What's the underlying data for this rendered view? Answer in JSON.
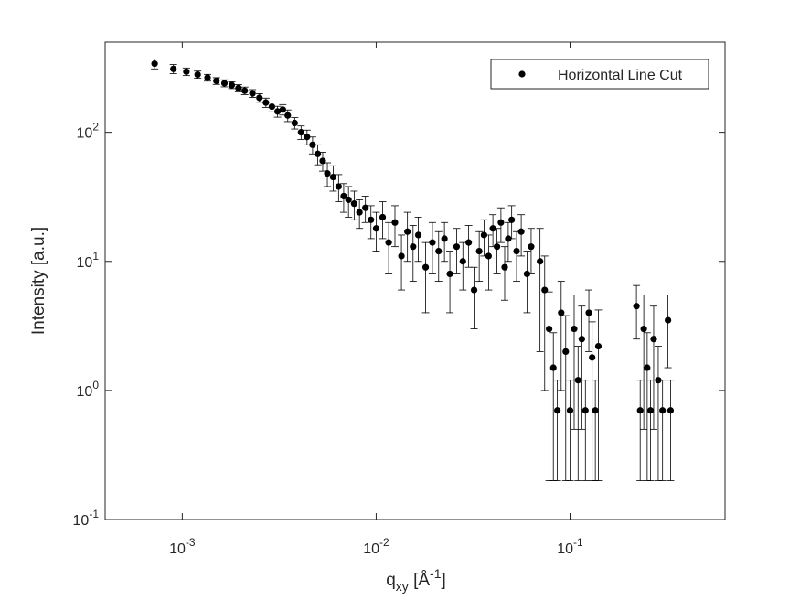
{
  "chart_data": {
    "type": "scatter",
    "xlabel_parts": [
      "q",
      "xy",
      " [Å",
      "-1",
      "]"
    ],
    "ylabel": "Intensity [a.u.]",
    "xscale": "log",
    "yscale": "log",
    "xlim": [
      0.0004,
      0.63
    ],
    "ylim": [
      0.1,
      500
    ],
    "xticks": [
      {
        "value": 0.001,
        "label": "10",
        "exponent": "-3"
      },
      {
        "value": 0.01,
        "label": "10",
        "exponent": "-2"
      },
      {
        "value": 0.1,
        "label": "10",
        "exponent": "-1"
      }
    ],
    "yticks": [
      {
        "value": 0.1,
        "label": "10",
        "exponent": "-1"
      },
      {
        "value": 1,
        "label": "10",
        "exponent": "0"
      },
      {
        "value": 10,
        "label": "10",
        "exponent": "1"
      },
      {
        "value": 100,
        "label": "10",
        "exponent": "2"
      }
    ],
    "legend": "northeast",
    "series": [
      {
        "name": "Horizontal Line Cut",
        "color": "#000000",
        "x": [
          0.00072,
          0.0009,
          0.00105,
          0.0012,
          0.00135,
          0.0015,
          0.00165,
          0.0018,
          0.00195,
          0.0021,
          0.0023,
          0.0025,
          0.0027,
          0.0029,
          0.0031,
          0.0033,
          0.0035,
          0.0038,
          0.0041,
          0.0044,
          0.0047,
          0.005,
          0.0053,
          0.0056,
          0.006,
          0.0064,
          0.0068,
          0.0072,
          0.0077,
          0.0082,
          0.0088,
          0.0094,
          0.01,
          0.0108,
          0.0116,
          0.0125,
          0.0135,
          0.0145,
          0.0155,
          0.0165,
          0.018,
          0.0195,
          0.021,
          0.0225,
          0.024,
          0.026,
          0.028,
          0.03,
          0.032,
          0.034,
          0.036,
          0.038,
          0.04,
          0.042,
          0.044,
          0.046,
          0.048,
          0.05,
          0.053,
          0.056,
          0.06,
          0.063,
          0.07,
          0.074,
          0.078,
          0.082,
          0.086,
          0.09,
          0.095,
          0.1,
          0.105,
          0.11,
          0.115,
          0.12,
          0.125,
          0.13,
          0.135,
          0.14,
          0.22,
          0.23,
          0.24,
          0.25,
          0.26,
          0.27,
          0.285,
          0.3,
          0.32,
          0.33
        ],
        "values": [
          340,
          310,
          295,
          280,
          265,
          250,
          240,
          232,
          220,
          210,
          200,
          185,
          170,
          158,
          145,
          150,
          135,
          118,
          100,
          92,
          80,
          68,
          60,
          48,
          45,
          38,
          32,
          30,
          28,
          24,
          26,
          21,
          18,
          22,
          14,
          20,
          11,
          17,
          13,
          16,
          9,
          14,
          12,
          15,
          8,
          13,
          10,
          14,
          6,
          12,
          16,
          11,
          18,
          13,
          20,
          9,
          15,
          21,
          12,
          17,
          8,
          13,
          10,
          6,
          3,
          1.5,
          0.7,
          4,
          2,
          0.7,
          3,
          1.2,
          2.5,
          0.7,
          4,
          1.8,
          0.7,
          2.2,
          4.5,
          0.7,
          3,
          1.5,
          0.7,
          2.5,
          1.2,
          0.7,
          3.5,
          0.7
        ],
        "errors": [
          30,
          25,
          20,
          18,
          16,
          15,
          15,
          14,
          14,
          14,
          14,
          14,
          14,
          14,
          14,
          14,
          14,
          12,
          12,
          12,
          12,
          12,
          10,
          10,
          10,
          9,
          8,
          8,
          7,
          6,
          6,
          6,
          6,
          7,
          6,
          7,
          5,
          7,
          6,
          6,
          5,
          6,
          5,
          5,
          4,
          5,
          4,
          5,
          3,
          5,
          5,
          5,
          5,
          5,
          6,
          4,
          5,
          6,
          5,
          6,
          4,
          5,
          8,
          5,
          2.8,
          1.3,
          0.5,
          3,
          1.8,
          0.5,
          2.5,
          1,
          2,
          0.5,
          2,
          1.6,
          0.5,
          2,
          2,
          0.5,
          2.5,
          1.3,
          0.5,
          2,
          1,
          0.5,
          2,
          0.5
        ]
      }
    ]
  }
}
